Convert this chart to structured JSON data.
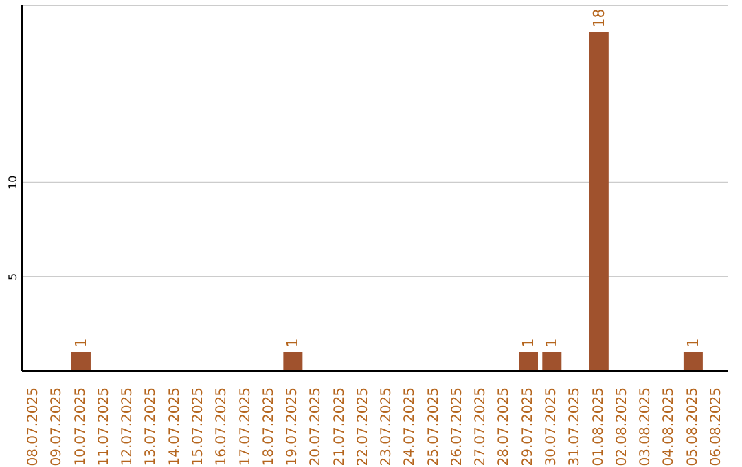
{
  "chart_data": {
    "type": "bar",
    "categories": [
      "08.07.2025",
      "09.07.2025",
      "10.07.2025",
      "11.07.2025",
      "12.07.2025",
      "13.07.2025",
      "14.07.2025",
      "15.07.2025",
      "16.07.2025",
      "17.07.2025",
      "18.07.2025",
      "19.07.2025",
      "20.07.2025",
      "21.07.2025",
      "22.07.2025",
      "23.07.2025",
      "24.07.2025",
      "25.07.2025",
      "26.07.2025",
      "27.07.2025",
      "28.07.2025",
      "29.07.2025",
      "30.07.2025",
      "31.07.2025",
      "01.08.2025",
      "02.08.2025",
      "03.08.2025",
      "04.08.2025",
      "05.08.2025",
      "06.08.2025"
    ],
    "values": [
      0,
      0,
      1,
      0,
      0,
      0,
      0,
      0,
      0,
      0,
      0,
      1,
      0,
      0,
      0,
      0,
      0,
      0,
      0,
      0,
      0,
      1,
      1,
      0,
      18,
      0,
      0,
      0,
      1,
      0
    ],
    "value_labels": [
      null,
      null,
      "1",
      null,
      null,
      null,
      null,
      null,
      null,
      null,
      null,
      "1",
      null,
      null,
      null,
      null,
      null,
      null,
      null,
      null,
      null,
      "1",
      "1",
      null,
      "18",
      null,
      null,
      null,
      "1",
      null
    ],
    "color": "#a0522d",
    "ylim": [
      0,
      19.4
    ],
    "yticks": [
      5,
      10
    ],
    "grid": "y"
  }
}
